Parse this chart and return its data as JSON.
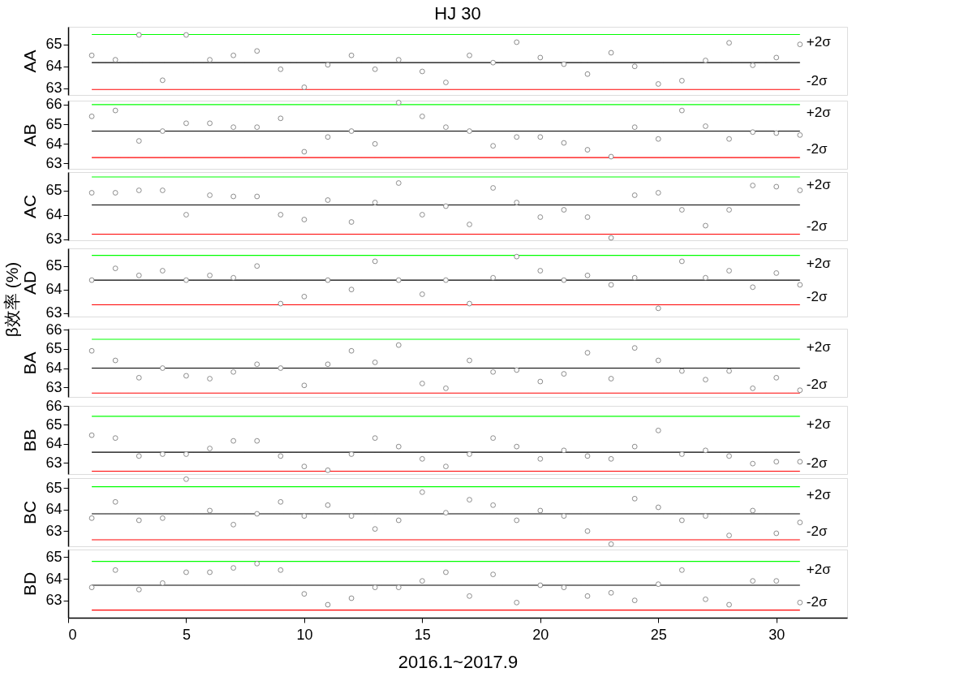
{
  "chart_data": [
    {
      "type": "scatter",
      "title": "HJ 30",
      "annotations": [
        "β效率 (%)"
      ],
      "ylabel": "AA",
      "x": [
        1,
        2,
        3,
        4,
        5,
        6,
        7,
        8,
        9,
        10,
        11,
        12,
        13,
        14,
        15,
        16,
        17,
        18,
        19,
        20,
        21,
        22,
        23,
        24,
        25,
        26,
        27,
        28,
        29,
        30,
        31
      ],
      "xlim": [
        0,
        33
      ],
      "ylim": [
        62.7,
        65.8
      ],
      "yticks": [
        63,
        64,
        65
      ],
      "tick_labels": "y",
      "marker": "circle",
      "series": [
        {
          "color": "#808080",
          "values": [
            64.5,
            64.3,
            65.43,
            63.37,
            65.43,
            64.3,
            64.5,
            64.7,
            63.87,
            63.05,
            64.07,
            64.5,
            63.87,
            64.3,
            63.77,
            63.27,
            64.5,
            64.17,
            65.1,
            64.4,
            64.1,
            63.65,
            64.62,
            64.0,
            63.2,
            63.35,
            64.27,
            65.07,
            64.05,
            64.4,
            65.0
          ]
        }
      ],
      "ref_lines": [
        {
          "axis": "y",
          "value": 65.45,
          "label": "+2σ",
          "color": "#00ff00"
        },
        {
          "axis": "y",
          "value": 64.17,
          "label": null,
          "color": "#000000"
        },
        {
          "axis": "y",
          "value": 62.95,
          "label": "-2σ",
          "color": "#ff0000"
        }
      ]
    },
    {
      "type": "scatter",
      "ylabel": "AB",
      "x": [
        1,
        2,
        3,
        4,
        5,
        6,
        7,
        8,
        9,
        10,
        11,
        12,
        13,
        14,
        15,
        16,
        17,
        18,
        19,
        20,
        21,
        22,
        23,
        24,
        25,
        26,
        27,
        28,
        29,
        30,
        31
      ],
      "xlim": [
        0,
        33
      ],
      "ylim": [
        62.73,
        66.2
      ],
      "yticks": [
        63,
        64,
        65,
        66
      ],
      "tick_labels": "y",
      "marker": "circle",
      "series": [
        {
          "color": "#808080",
          "values": [
            65.4,
            65.7,
            64.15,
            64.65,
            65.05,
            65.05,
            64.85,
            64.85,
            65.3,
            63.6,
            64.35,
            64.65,
            64.0,
            66.1,
            65.4,
            64.85,
            64.65,
            63.9,
            64.35,
            64.35,
            64.05,
            63.7,
            63.35,
            64.85,
            64.25,
            65.7,
            64.9,
            64.25,
            64.6,
            64.55,
            64.45
          ]
        }
      ],
      "ref_lines": [
        {
          "axis": "y",
          "value": 66.0,
          "label": "+2σ",
          "color": "#00ff00"
        },
        {
          "axis": "y",
          "value": 64.65,
          "label": null,
          "color": "#000000"
        },
        {
          "axis": "y",
          "value": 63.3,
          "label": "-2σ",
          "color": "#ff0000"
        }
      ]
    },
    {
      "type": "scatter",
      "ylabel": "AC",
      "x": [
        1,
        2,
        3,
        4,
        5,
        6,
        7,
        8,
        9,
        10,
        11,
        12,
        13,
        14,
        15,
        16,
        17,
        18,
        19,
        20,
        21,
        22,
        23,
        24,
        25,
        26,
        27,
        28,
        29,
        30,
        31
      ],
      "xlim": [
        0,
        33
      ],
      "ylim": [
        62.95,
        65.75
      ],
      "yticks": [
        63,
        64,
        65
      ],
      "tick_labels": "y",
      "marker": "circle",
      "series": [
        {
          "color": "#808080",
          "values": [
            64.9,
            64.9,
            65.0,
            65.0,
            64.0,
            64.8,
            64.75,
            64.75,
            64.0,
            63.8,
            64.6,
            63.7,
            64.5,
            65.3,
            64.0,
            64.35,
            63.6,
            65.1,
            64.5,
            63.9,
            64.2,
            63.9,
            63.05,
            64.8,
            64.9,
            64.2,
            63.55,
            64.2,
            65.2,
            65.15,
            65.0
          ]
        }
      ],
      "ref_lines": [
        {
          "axis": "y",
          "value": 65.55,
          "label": "+2σ",
          "color": "#00ff00"
        },
        {
          "axis": "y",
          "value": 64.4,
          "label": null,
          "color": "#000000"
        },
        {
          "axis": "y",
          "value": 63.2,
          "label": "-2σ",
          "color": "#ff0000"
        }
      ]
    },
    {
      "type": "scatter",
      "ylabel": "AD",
      "x": [
        1,
        2,
        3,
        4,
        5,
        6,
        7,
        8,
        9,
        10,
        11,
        12,
        13,
        14,
        15,
        16,
        17,
        18,
        19,
        20,
        21,
        22,
        23,
        24,
        25,
        26,
        27,
        28,
        29,
        30,
        31
      ],
      "xlim": [
        0,
        33
      ],
      "ylim": [
        62.85,
        65.75
      ],
      "yticks": [
        63,
        64,
        65
      ],
      "tick_labels": "y",
      "marker": "circle",
      "series": [
        {
          "color": "#808080",
          "values": [
            64.4,
            64.9,
            64.6,
            64.8,
            64.4,
            64.6,
            64.5,
            65.0,
            63.4,
            63.7,
            64.4,
            64.0,
            65.2,
            64.4,
            63.8,
            64.4,
            63.4,
            64.5,
            65.4,
            64.8,
            64.4,
            64.6,
            64.2,
            64.5,
            63.2,
            65.2,
            64.5,
            64.8,
            64.1,
            64.7,
            64.2
          ]
        }
      ],
      "ref_lines": [
        {
          "axis": "y",
          "value": 65.45,
          "label": "+2σ",
          "color": "#00ff00"
        },
        {
          "axis": "y",
          "value": 64.4,
          "label": null,
          "color": "#000000"
        },
        {
          "axis": "y",
          "value": 63.35,
          "label": "-2σ",
          "color": "#ff0000"
        }
      ]
    },
    {
      "type": "scatter",
      "ylabel": "BA",
      "x": [
        1,
        2,
        3,
        4,
        5,
        6,
        7,
        8,
        9,
        10,
        11,
        12,
        13,
        14,
        15,
        16,
        17,
        18,
        19,
        20,
        21,
        22,
        23,
        24,
        25,
        26,
        27,
        28,
        29,
        30,
        31
      ],
      "xlim": [
        0,
        33
      ],
      "ylim": [
        62.5,
        66.05
      ],
      "yticks": [
        63,
        64,
        65,
        66
      ],
      "tick_labels": "y",
      "marker": "circle",
      "series": [
        {
          "color": "#808080",
          "values": [
            64.9,
            64.4,
            63.5,
            64.0,
            63.6,
            63.45,
            63.8,
            64.2,
            64.0,
            63.1,
            64.2,
            64.9,
            64.3,
            65.2,
            63.2,
            62.95,
            64.4,
            63.8,
            63.9,
            63.3,
            63.7,
            64.8,
            63.45,
            65.05,
            64.4,
            63.85,
            63.4,
            63.85,
            62.95,
            63.5,
            62.85
          ]
        }
      ],
      "ref_lines": [
        {
          "axis": "y",
          "value": 65.5,
          "label": "+2σ",
          "color": "#00ff00"
        },
        {
          "axis": "y",
          "value": 64.0,
          "label": null,
          "color": "#000000"
        },
        {
          "axis": "y",
          "value": 62.7,
          "label": "-2σ",
          "color": "#ff0000"
        }
      ]
    },
    {
      "type": "scatter",
      "ylabel": "BB",
      "x": [
        1,
        2,
        3,
        4,
        5,
        6,
        7,
        8,
        9,
        10,
        11,
        12,
        13,
        14,
        15,
        16,
        17,
        18,
        19,
        20,
        21,
        22,
        23,
        24,
        25,
        26,
        27,
        28,
        29,
        30,
        31
      ],
      "xlim": [
        0,
        33
      ],
      "ylim": [
        62.4,
        66.0
      ],
      "yticks": [
        63,
        64,
        65,
        66
      ],
      "tick_labels": "y",
      "marker": "circle",
      "series": [
        {
          "color": "#808080",
          "values": [
            64.45,
            64.3,
            63.35,
            63.45,
            63.45,
            63.75,
            64.15,
            64.15,
            63.35,
            62.8,
            62.6,
            63.45,
            64.3,
            63.85,
            63.2,
            62.8,
            63.45,
            64.3,
            63.85,
            63.2,
            63.65,
            63.35,
            63.2,
            63.85,
            64.7,
            63.45,
            63.65,
            63.35,
            62.95,
            63.05,
            63.05
          ]
        }
      ],
      "ref_lines": [
        {
          "axis": "y",
          "value": 65.45,
          "label": "+2σ",
          "color": "#00ff00"
        },
        {
          "axis": "y",
          "value": 63.55,
          "label": null,
          "color": "#000000"
        },
        {
          "axis": "y",
          "value": 62.55,
          "label": "-2σ",
          "color": "#ff0000"
        }
      ]
    },
    {
      "type": "scatter",
      "ylabel": "BC",
      "x": [
        1,
        2,
        3,
        4,
        5,
        6,
        7,
        8,
        9,
        10,
        11,
        12,
        13,
        14,
        15,
        16,
        17,
        18,
        19,
        20,
        21,
        22,
        23,
        24,
        25,
        26,
        27,
        28,
        29,
        30,
        31
      ],
      "xlim": [
        0,
        33
      ],
      "ylim": [
        62.3,
        65.45
      ],
      "yticks": [
        63,
        64,
        65
      ],
      "tick_labels": "y",
      "marker": "circle",
      "series": [
        {
          "color": "#808080",
          "values": [
            63.6,
            64.35,
            63.5,
            63.6,
            65.4,
            63.95,
            63.3,
            63.8,
            64.35,
            63.7,
            64.2,
            63.7,
            63.1,
            63.5,
            64.8,
            63.85,
            64.45,
            64.2,
            63.5,
            63.95,
            63.7,
            63.0,
            62.4,
            64.5,
            64.1,
            63.5,
            63.7,
            62.8,
            63.95,
            62.9,
            63.4
          ]
        }
      ],
      "ref_lines": [
        {
          "axis": "y",
          "value": 65.05,
          "label": "+2σ",
          "color": "#00ff00"
        },
        {
          "axis": "y",
          "value": 63.8,
          "label": null,
          "color": "#000000"
        },
        {
          "axis": "y",
          "value": 62.6,
          "label": "-2σ",
          "color": "#ff0000"
        }
      ]
    },
    {
      "type": "scatter",
      "ylabel": "BD",
      "xlabel": "2016.1~2017.9",
      "x": [
        1,
        2,
        3,
        4,
        5,
        6,
        7,
        8,
        9,
        10,
        11,
        12,
        13,
        14,
        15,
        16,
        17,
        18,
        19,
        20,
        21,
        22,
        23,
        24,
        25,
        26,
        27,
        28,
        29,
        30,
        31
      ],
      "xlim": [
        0,
        33
      ],
      "xticks": [
        0,
        5,
        10,
        15,
        20,
        25,
        30
      ],
      "ylim": [
        62.2,
        65.35
      ],
      "yticks": [
        63,
        64,
        65
      ],
      "marker": "circle",
      "series": [
        {
          "color": "#808080",
          "values": [
            63.6,
            64.4,
            63.5,
            63.8,
            64.3,
            64.3,
            64.5,
            64.7,
            64.4,
            63.3,
            62.8,
            63.1,
            63.6,
            63.6,
            63.9,
            64.3,
            63.2,
            64.2,
            62.9,
            63.7,
            63.6,
            63.2,
            63.35,
            63.0,
            63.75,
            64.4,
            63.05,
            62.8,
            63.9,
            63.9,
            62.9
          ]
        }
      ],
      "ref_lines": [
        {
          "axis": "y",
          "value": 64.8,
          "label": "+2σ",
          "color": "#00ff00"
        },
        {
          "axis": "y",
          "value": 63.7,
          "label": null,
          "color": "#000000"
        },
        {
          "axis": "y",
          "value": 62.55,
          "label": "-2σ",
          "color": "#ff0000"
        }
      ]
    }
  ]
}
